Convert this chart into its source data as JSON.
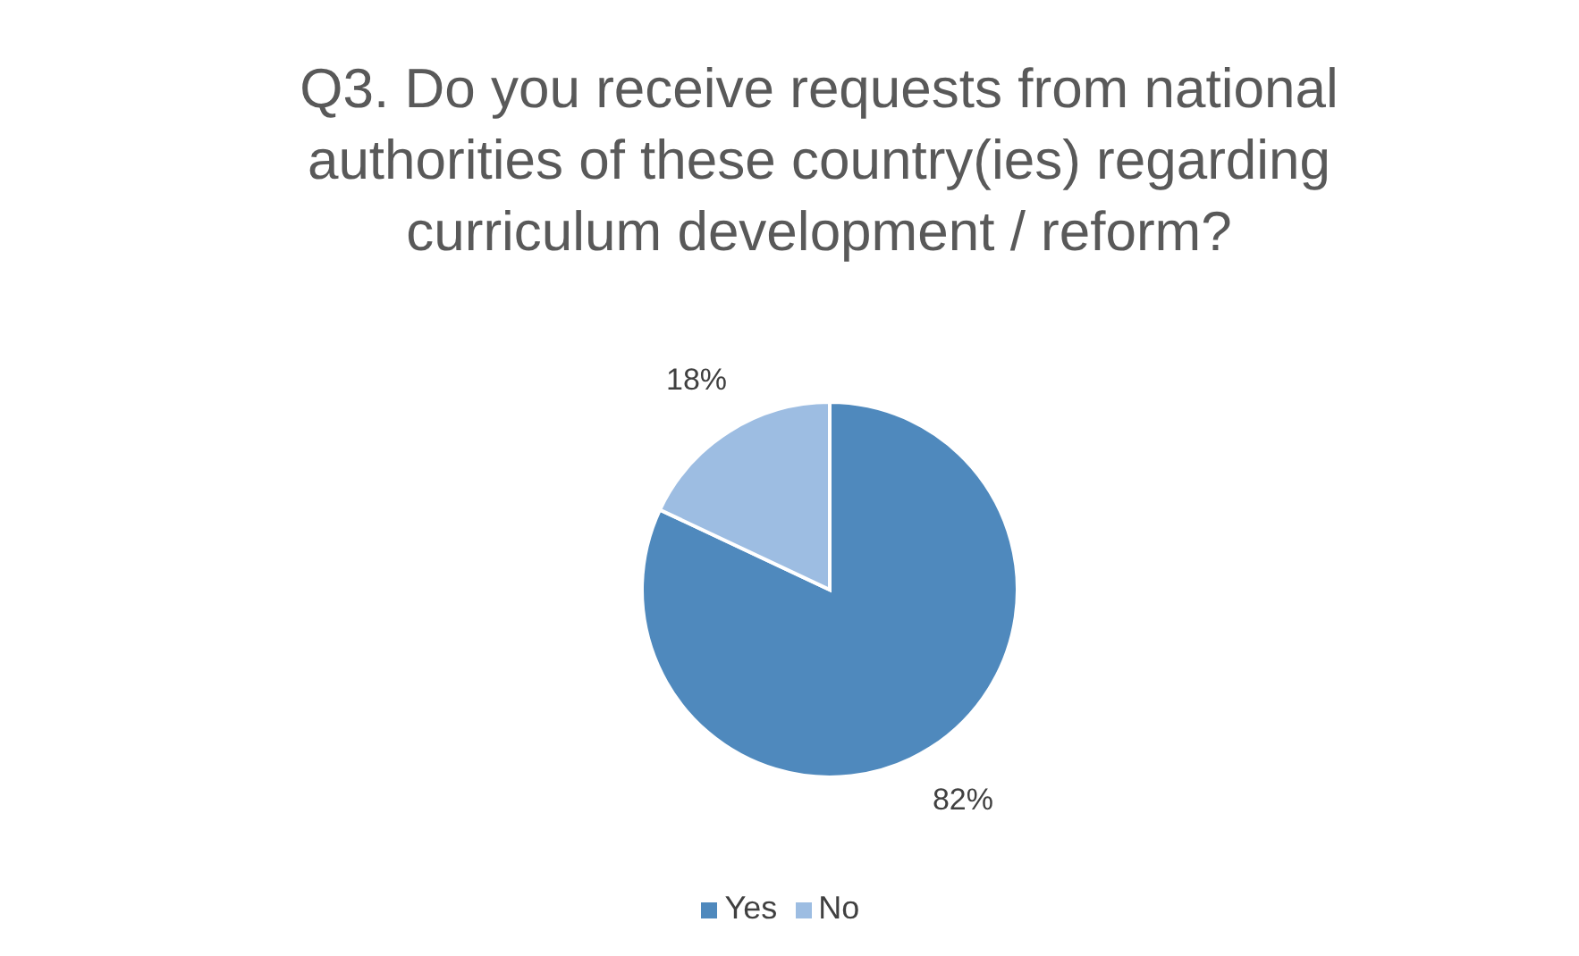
{
  "chart_data": {
    "type": "pie",
    "title": "Q3. Do you receive requests from national authorities of these country(ies) regarding curriculum development / reform?",
    "categories": [
      "Yes",
      "No"
    ],
    "values": [
      82,
      18
    ],
    "value_labels": [
      "82%",
      "18%"
    ],
    "colors": [
      "#4f89bd",
      "#9dbde2"
    ],
    "legend": "bottom"
  }
}
